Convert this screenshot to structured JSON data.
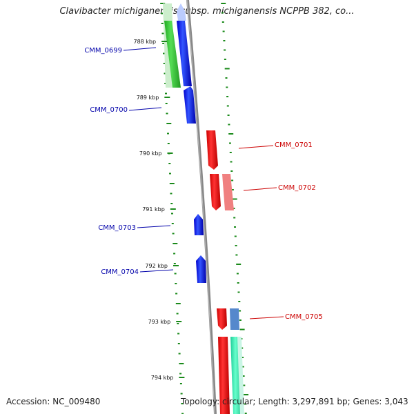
{
  "title": "Clavibacter michiganensis subsp. michiganensis NCPPB 382, co...",
  "footer": {
    "accession": "Accession: NC_009480",
    "topology": "Topology: circular; Length: 3,297,891 bp; Genes: 3,043"
  },
  "colors": {
    "backbone": "#888888",
    "tick": "#1a8a1a",
    "forward_label": "#0000aa",
    "reverse_label": "#cc0000"
  },
  "scale": {
    "unit": "kbp",
    "ticks": [
      "788 kbp",
      "789 kbp",
      "790 kbp",
      "791 kbp",
      "792 kbp",
      "793 kbp",
      "794 kbp"
    ]
  },
  "genes": [
    {
      "name": "CMM_0699",
      "strand": "forward",
      "color": "#0000ff"
    },
    {
      "name": "CMM_0700",
      "strand": "forward",
      "color": "#0000ff"
    },
    {
      "name": "CMM_0701",
      "strand": "reverse",
      "color": "#ff0000"
    },
    {
      "name": "CMM_0702",
      "strand": "reverse",
      "color": "#ff0000"
    },
    {
      "name": "CMM_0703",
      "strand": "forward",
      "color": "#0000ff"
    },
    {
      "name": "CMM_0704",
      "strand": "forward",
      "color": "#0000ff"
    },
    {
      "name": "CMM_0705",
      "strand": "reverse",
      "color": "#ff0000"
    }
  ],
  "feature_colors": {
    "cds_forward_top": "#bbddff",
    "gc_green": "#33cc33",
    "gc_light_green": "#cceecc",
    "gc_pink": "#f08080",
    "gc_steel": "#5588cc",
    "gc_aqua": "#33ddaa"
  }
}
